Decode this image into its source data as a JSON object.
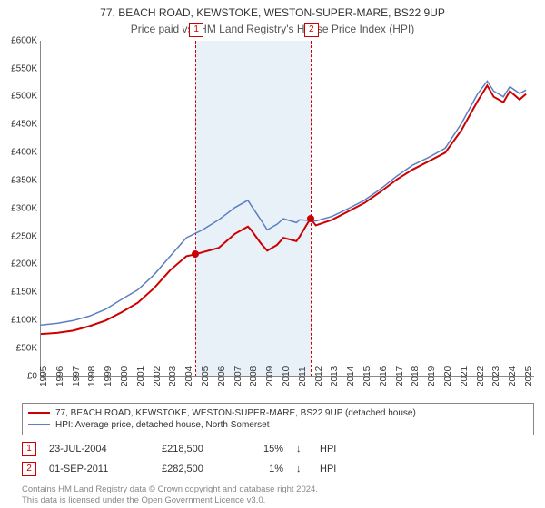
{
  "header": {
    "title": "77, BEACH ROAD, KEWSTOKE, WESTON-SUPER-MARE, BS22 9UP",
    "subtitle": "Price paid vs. HM Land Registry's House Price Index (HPI)"
  },
  "chart": {
    "type": "line",
    "background_color": "#ffffff",
    "plot_border_color": "#888888",
    "grid_color": "#d9d9d9",
    "label_fontsize": 10,
    "xlim": [
      1995,
      2025.5
    ],
    "ylim": [
      0,
      600000
    ],
    "ytick_step": 50000,
    "ytick_prefix": "£",
    "ytick_suffix": "K",
    "ytick_divisor": 1000,
    "xtick_years": [
      1995,
      1996,
      1997,
      1998,
      1999,
      2000,
      2001,
      2002,
      2003,
      2004,
      2005,
      2006,
      2007,
      2008,
      2009,
      2010,
      2011,
      2012,
      2013,
      2014,
      2015,
      2016,
      2017,
      2018,
      2019,
      2020,
      2021,
      2022,
      2023,
      2024,
      2025
    ],
    "shaded_band": {
      "from": 2004.56,
      "to": 2011.67,
      "color": "#e6eef7"
    },
    "event_lines": [
      {
        "marker": "1",
        "x": 2004.56,
        "line_color": "#cc0000",
        "dash": "4 3"
      },
      {
        "marker": "2",
        "x": 2011.67,
        "line_color": "#cc0000",
        "dash": "4 3"
      }
    ],
    "series": [
      {
        "id": "price_paid",
        "label": "77, BEACH ROAD, KEWSTOKE, WESTON-SUPER-MARE, BS22 9UP (detached house)",
        "color": "#cc0000",
        "line_width": 2,
        "data": [
          [
            1995,
            76000
          ],
          [
            1996,
            78000
          ],
          [
            1997,
            82000
          ],
          [
            1998,
            90000
          ],
          [
            1999,
            100000
          ],
          [
            2000,
            115000
          ],
          [
            2001,
            132000
          ],
          [
            2002,
            158000
          ],
          [
            2003,
            190000
          ],
          [
            2004,
            215000
          ],
          [
            2004.56,
            218500
          ],
          [
            2005,
            222000
          ],
          [
            2006,
            230000
          ],
          [
            2007,
            255000
          ],
          [
            2007.8,
            268000
          ],
          [
            2008,
            262000
          ],
          [
            2008.6,
            238000
          ],
          [
            2009,
            225000
          ],
          [
            2009.6,
            235000
          ],
          [
            2010,
            248000
          ],
          [
            2010.8,
            242000
          ],
          [
            2011,
            250000
          ],
          [
            2011.67,
            282500
          ],
          [
            2012,
            270000
          ],
          [
            2013,
            280000
          ],
          [
            2014,
            295000
          ],
          [
            2015,
            310000
          ],
          [
            2016,
            330000
          ],
          [
            2017,
            352000
          ],
          [
            2018,
            370000
          ],
          [
            2019,
            385000
          ],
          [
            2020,
            400000
          ],
          [
            2021,
            440000
          ],
          [
            2022,
            492000
          ],
          [
            2022.6,
            520000
          ],
          [
            2023,
            500000
          ],
          [
            2023.6,
            490000
          ],
          [
            2024,
            510000
          ],
          [
            2024.6,
            495000
          ],
          [
            2025,
            505000
          ]
        ],
        "markers": [
          {
            "x": 2004.56,
            "y": 218500
          },
          {
            "x": 2011.67,
            "y": 282500
          }
        ]
      },
      {
        "id": "hpi",
        "label": "HPI: Average price, detached house, North Somerset",
        "color": "#5b7fbf",
        "line_width": 1.5,
        "data": [
          [
            1995,
            92000
          ],
          [
            1996,
            95000
          ],
          [
            1997,
            100000
          ],
          [
            1998,
            108000
          ],
          [
            1999,
            120000
          ],
          [
            2000,
            138000
          ],
          [
            2001,
            155000
          ],
          [
            2002,
            182000
          ],
          [
            2003,
            215000
          ],
          [
            2004,
            248000
          ],
          [
            2005,
            262000
          ],
          [
            2006,
            280000
          ],
          [
            2007,
            302000
          ],
          [
            2007.8,
            315000
          ],
          [
            2008,
            306000
          ],
          [
            2008.6,
            280000
          ],
          [
            2009,
            262000
          ],
          [
            2009.6,
            272000
          ],
          [
            2010,
            282000
          ],
          [
            2010.8,
            275000
          ],
          [
            2011,
            280000
          ],
          [
            2012,
            278000
          ],
          [
            2013,
            286000
          ],
          [
            2014,
            300000
          ],
          [
            2015,
            315000
          ],
          [
            2016,
            335000
          ],
          [
            2017,
            358000
          ],
          [
            2018,
            378000
          ],
          [
            2019,
            392000
          ],
          [
            2020,
            408000
          ],
          [
            2021,
            452000
          ],
          [
            2022,
            505000
          ],
          [
            2022.6,
            528000
          ],
          [
            2023,
            510000
          ],
          [
            2023.6,
            500000
          ],
          [
            2024,
            518000
          ],
          [
            2024.6,
            506000
          ],
          [
            2025,
            512000
          ]
        ]
      }
    ]
  },
  "legend": {
    "items": [
      {
        "color": "#cc0000",
        "label": "77, BEACH ROAD, KEWSTOKE, WESTON-SUPER-MARE, BS22 9UP (detached house)"
      },
      {
        "color": "#5b7fbf",
        "label": "HPI: Average price, detached house, North Somerset"
      }
    ]
  },
  "transactions": {
    "hpi_label": "HPI",
    "arrow_glyph": "↓",
    "rows": [
      {
        "marker": "1",
        "date": "23-JUL-2004",
        "price": "£218,500",
        "pct": "15%",
        "dir": "down"
      },
      {
        "marker": "2",
        "date": "01-SEP-2011",
        "price": "£282,500",
        "pct": "1%",
        "dir": "down"
      }
    ]
  },
  "footer": {
    "line1": "Contains HM Land Registry data © Crown copyright and database right 2024.",
    "line2": "This data is licensed under the Open Government Licence v3.0."
  }
}
